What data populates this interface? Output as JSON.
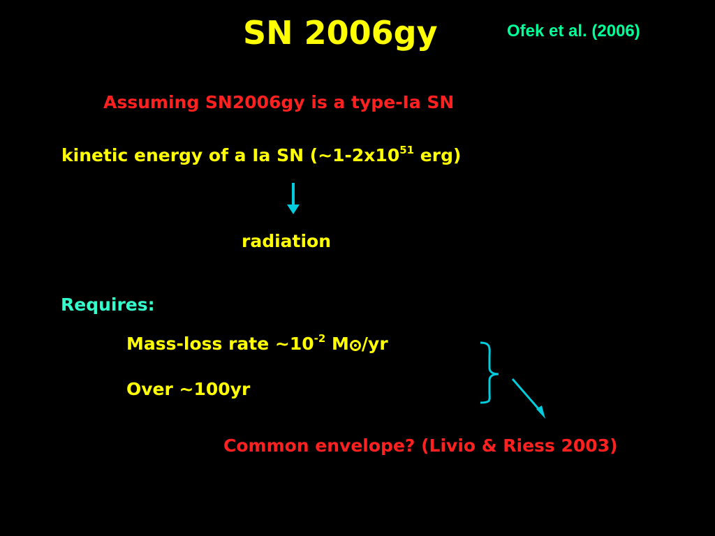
{
  "slide": {
    "title": "SN 2006gy",
    "reference": "Ofek et al. (2006)",
    "assumption": "Assuming SN2006gy is a type-Ia SN",
    "kinetic_energy": {
      "prefix": "kinetic energy of a Ia SN (~1-2x10",
      "exponent": "51",
      "suffix": " erg)"
    },
    "result": "radiation",
    "requires_label": "Requires:",
    "mass_loss": {
      "prefix": "Mass-loss rate ~10",
      "exponent": "-2",
      "mid": " M",
      "suffix": "/yr"
    },
    "duration": "Over ~100yr",
    "conclusion": "Common envelope? (Livio & Riess 2003)"
  },
  "colors": {
    "background": "#000000",
    "yellow": "#ffff00",
    "red": "#ff2020",
    "green": "#00ff99",
    "cyan": "#33ffcc",
    "arrow": "#00ccdd"
  },
  "icons": [
    "down-arrow-icon",
    "sun-symbol-icon",
    "curly-brace-icon",
    "diagonal-arrow-icon"
  ]
}
